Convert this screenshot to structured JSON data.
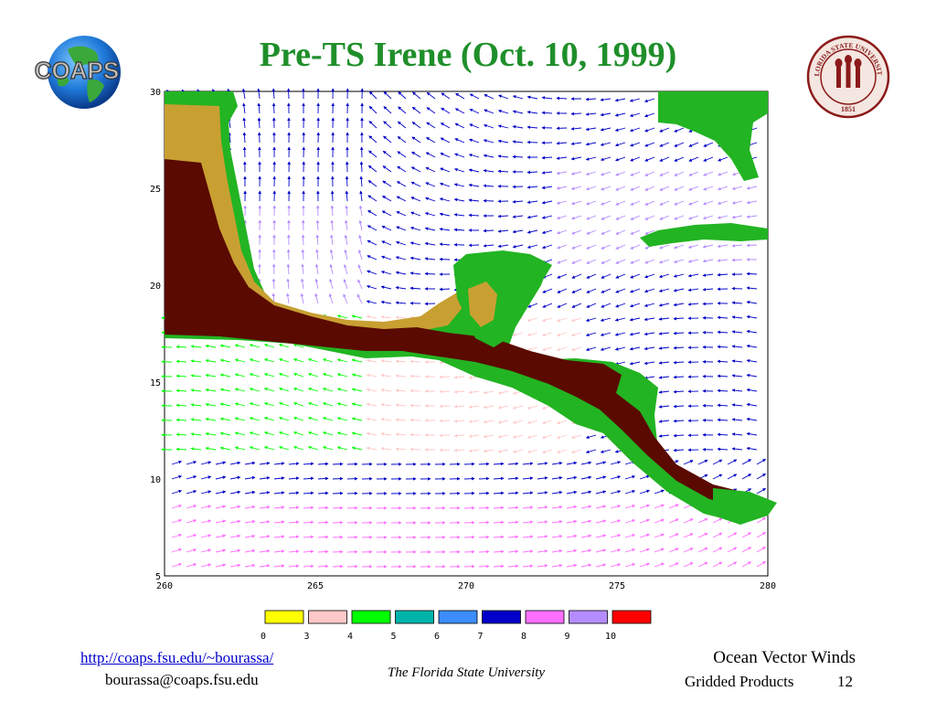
{
  "slide": {
    "title": "Pre-TS Irene (Oct. 10, 1999)",
    "page_number": "12"
  },
  "logo": {
    "text": "COAPS",
    "icon": "globe-icon"
  },
  "seal": {
    "text_top": "FLORIDA STATE UNIVERSITY",
    "year": "1851",
    "icon": "university-seal-icon"
  },
  "map": {
    "x_ticks": [
      "260",
      "265",
      "270",
      "275",
      "280"
    ],
    "y_ticks": [
      "30",
      "25",
      "20",
      "15",
      "10",
      "5"
    ],
    "x_range": [
      260,
      280
    ],
    "y_range": [
      5,
      30
    ],
    "colors": {
      "ocean": "#ffffff",
      "land_low": "#22b422",
      "land_mid": "#c8a032",
      "land_high": "#5a0a00"
    }
  },
  "legend": {
    "labels": [
      "0",
      "3",
      "4",
      "5",
      "6",
      "7",
      "8",
      "9",
      "10"
    ],
    "colors": [
      "#ffff00",
      "#ffc8c8",
      "#00ff00",
      "#00b4aa",
      "#3c8cff",
      "#0000c8",
      "#ff6eff",
      "#b48cff",
      "#ff0000"
    ]
  },
  "footer": {
    "link": "http://coaps.fsu.edu/~bourassa/",
    "email": "bourassa@coaps.fsu.edu",
    "center": "The Florida State University",
    "right_line1": "Ocean Vector Winds",
    "right_line2": "Gridded Products"
  }
}
